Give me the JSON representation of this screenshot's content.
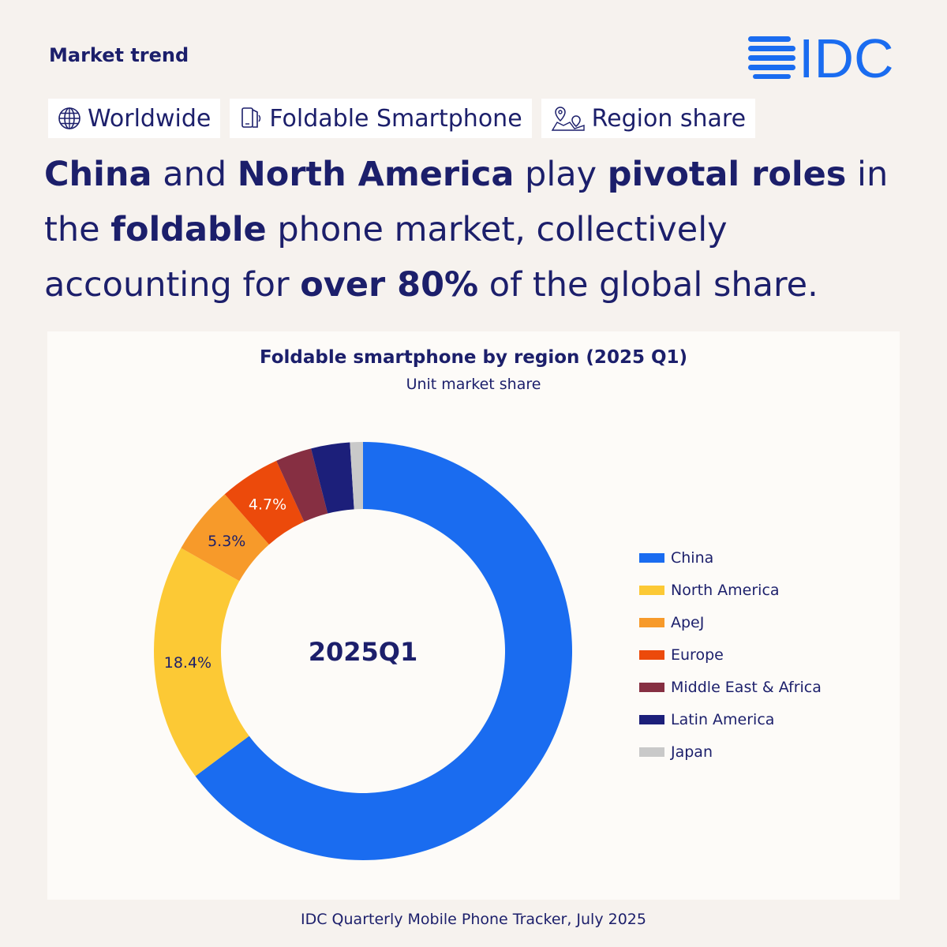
{
  "header": {
    "eyebrow": "Market trend",
    "logo_text": "IDC",
    "brand_color": "#1a6cf0"
  },
  "tags": [
    {
      "label": "Worldwide",
      "icon": "globe-icon"
    },
    {
      "label": "Foldable Smartphone",
      "icon": "foldable-phone-icon"
    },
    {
      "label": "Region share",
      "icon": "map-pin-icon"
    }
  ],
  "headline": {
    "s1": "China",
    "s2": " and ",
    "s3": "North America",
    "s4": " play ",
    "s5": "pivotal roles",
    "s6": " in the ",
    "s7": "foldable",
    "s8": " phone market, collectively accounting for ",
    "s9": "over 80%",
    "s10": " of the global share."
  },
  "chart_data": {
    "type": "pie",
    "title": "Foldable smartphone by region (2025 Q1)",
    "subtitle": "Unit market share",
    "center_label": "2025Q1",
    "unit": "%",
    "legend_position": "right",
    "slices": [
      {
        "label": "China",
        "value": 64.8,
        "color": "#1a6cf0",
        "data_label": ""
      },
      {
        "label": "North America",
        "value": 18.4,
        "color": "#fcc935",
        "data_label": "18.4%"
      },
      {
        "label": "ApeJ",
        "value": 5.3,
        "color": "#f79a2a",
        "data_label": "5.3%"
      },
      {
        "label": "Europe",
        "value": 4.7,
        "color": "#ec4a0b",
        "data_label": "4.7%"
      },
      {
        "label": "Middle East & Africa",
        "value": 2.8,
        "color": "#862f42",
        "data_label": ""
      },
      {
        "label": "Latin America",
        "value": 3.0,
        "color": "#1c1f7a",
        "data_label": ""
      },
      {
        "label": "Japan",
        "value": 1.0,
        "color": "#c9c9c9",
        "data_label": ""
      }
    ]
  },
  "footer": {
    "source": "IDC Quarterly Mobile Phone Tracker, July 2025"
  }
}
